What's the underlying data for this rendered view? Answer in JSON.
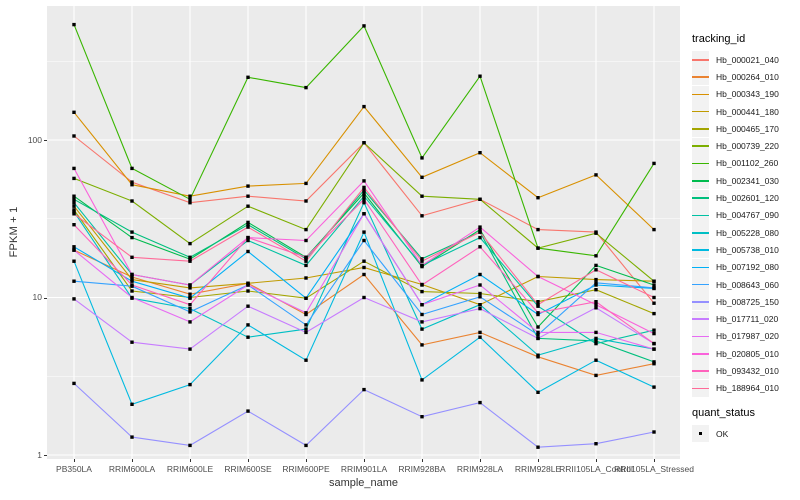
{
  "chart_data": {
    "type": "line",
    "title": "",
    "xlabel": "sample_name",
    "ylabel": "FPKM + 1",
    "y_scale": "log10",
    "ylim": [
      0.94,
      710
    ],
    "y_ticks": [
      1,
      10,
      100
    ],
    "y_tick_labels": [
      "1",
      "10",
      "100"
    ],
    "y_minor_gridlines": [
      3.162,
      31.623,
      316.23
    ],
    "grid": "white major and minor gridlines on grey panel",
    "legend_position": "right",
    "marker": "small black square (quant_status OK)",
    "categories": [
      "PB350LA",
      "RRIM600LA",
      "RRIM600LE",
      "RRIM600SE",
      "RRIM600PE",
      "RRIM901LA",
      "RRIM928BA",
      "RRIM928LA",
      "RRIM928LE",
      "RRII105LA_Control",
      "RRII105LA_Stressed"
    ],
    "series": [
      {
        "name": "Hb_000021_040",
        "color": "#F8766D",
        "values": [
          106,
          54,
          40,
          44,
          41,
          96,
          33,
          42,
          27,
          26,
          9.2
        ]
      },
      {
        "name": "Hb_000264_010",
        "color": "#EA8331",
        "values": [
          20,
          13.5,
          10.5,
          12.3,
          7.8,
          14,
          5,
          6,
          4.2,
          3.2,
          3.8
        ]
      },
      {
        "name": "Hb_000343_190",
        "color": "#D89000",
        "values": [
          150,
          52,
          44,
          51,
          53,
          163,
          58,
          83,
          43,
          60,
          27
        ]
      },
      {
        "name": "Hb_000441_180",
        "color": "#C09B00",
        "values": [
          38,
          13,
          11.5,
          12.3,
          13.3,
          15.5,
          12.1,
          9,
          13.6,
          13,
          12.7
        ]
      },
      {
        "name": "Hb_000465_170",
        "color": "#A3A500",
        "values": [
          36,
          11,
          10,
          11,
          9.9,
          17,
          10.9,
          10.6,
          9.4,
          11.2,
          7.9
        ]
      },
      {
        "name": "Hb_000739_220",
        "color": "#7CAE00",
        "values": [
          57,
          41,
          22,
          38,
          27,
          96,
          44,
          42,
          20.6,
          25.6,
          12.7
        ]
      },
      {
        "name": "Hb_001102_260",
        "color": "#39B600",
        "values": [
          540,
          66,
          42,
          250,
          215,
          530,
          77,
          254,
          20.6,
          18.4,
          71
        ]
      },
      {
        "name": "Hb_002341_030",
        "color": "#00BB4E",
        "values": [
          44,
          24,
          17.5,
          30,
          18,
          46,
          15.7,
          27,
          6.5,
          16,
          12
        ]
      },
      {
        "name": "Hb_002601_120",
        "color": "#00BF7D",
        "values": [
          42,
          26,
          18,
          29,
          17.6,
          48,
          17.6,
          26,
          5.5,
          5.3,
          3.9
        ]
      },
      {
        "name": "Hb_004767_090",
        "color": "#00C1A3",
        "values": [
          40,
          14,
          12,
          23,
          16,
          44,
          16,
          24,
          8.8,
          5.1,
          6.2
        ]
      },
      {
        "name": "Hb_005228_080",
        "color": "#00BFC4",
        "values": [
          35,
          9.9,
          8.5,
          5.6,
          6.3,
          40,
          6.3,
          9,
          4.3,
          5.5,
          4.7
        ]
      },
      {
        "name": "Hb_005738_010",
        "color": "#00BAE0",
        "values": [
          17,
          2.1,
          2.8,
          6.7,
          4,
          26,
          3,
          5.6,
          2.5,
          4,
          2.7
        ]
      },
      {
        "name": "Hb_007192_080",
        "color": "#00B0F6",
        "values": [
          21,
          12.7,
          9.9,
          19.6,
          9.9,
          34,
          9,
          14,
          7.8,
          12,
          11.4
        ]
      },
      {
        "name": "Hb_008643_060",
        "color": "#35A2FF",
        "values": [
          12.7,
          11.8,
          8.1,
          12,
          6.7,
          23,
          7.8,
          10.1,
          5.8,
          12.4,
          11.5
        ]
      },
      {
        "name": "Hb_008725_150",
        "color": "#9590FF",
        "values": [
          2.85,
          1.3,
          1.15,
          1.9,
          1.15,
          2.6,
          1.75,
          2.15,
          1.12,
          1.18,
          1.4
        ]
      },
      {
        "name": "Hb_017711_020",
        "color": "#C77CFF",
        "values": [
          9.8,
          5.2,
          4.7,
          8.8,
          6,
          10,
          7,
          8.5,
          5.5,
          8.6,
          5.1
        ]
      },
      {
        "name": "Hb_017987_020",
        "color": "#E76BF3",
        "values": [
          20,
          10,
          7,
          12,
          8,
          34,
          9,
          12,
          6,
          6,
          4.7
        ]
      },
      {
        "name": "Hb_020805_010",
        "color": "#FA62DB",
        "values": [
          66,
          14,
          12,
          24,
          23,
          55,
          16,
          28,
          13.6,
          9,
          5.9
        ]
      },
      {
        "name": "Hb_093432_010",
        "color": "#FF62BC",
        "values": [
          29,
          12,
          9,
          24,
          18,
          42,
          12,
          21,
          8,
          9.4,
          5.1
        ]
      },
      {
        "name": "Hb_188964_010",
        "color": "#FF6A98",
        "values": [
          34,
          18,
          17,
          28,
          17,
          50,
          17,
          26,
          9,
          15,
          10
        ]
      }
    ]
  },
  "legend": {
    "tracking_title": "tracking_id",
    "quant_title": "quant_status",
    "quant_items": [
      {
        "label": "OK",
        "marker": "black-square"
      }
    ]
  },
  "colors": {
    "page_bg": "#FFFFFF",
    "panel_bg": "#EBEBEB",
    "gridline": "#FFFFFF",
    "tick_label": "#4D4D4D",
    "axis_title": "#333333",
    "legend_key_bg": "#F2F2F2",
    "point_marker": "#000000"
  }
}
